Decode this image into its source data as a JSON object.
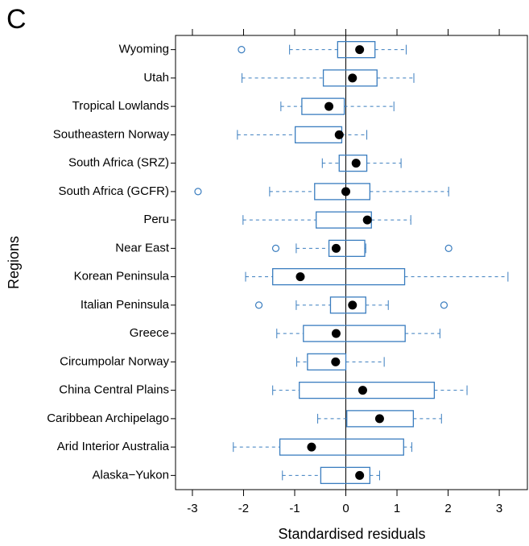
{
  "chart_data": {
    "type": "boxplot",
    "orientation": "horizontal",
    "panel_label": "C",
    "xlabel": "Standardised residuals",
    "ylabel": "Regions",
    "xlim": [
      -3.33,
      3.55
    ],
    "xticks": [
      -3,
      -2,
      -1,
      0,
      1,
      2,
      3
    ],
    "reference_line": 0,
    "box_color": "#3a7dbf",
    "mean_color": "#000000",
    "categories": [
      "Wyoming",
      "Utah",
      "Tropical Lowlands",
      "Southeastern Norway",
      "South Africa (SRZ)",
      "South Africa (GCFR)",
      "Peru",
      "Near East",
      "Korean Peninsula",
      "Italian Peninsula",
      "Greece",
      "Circumpolar Norway",
      "China Central Plains",
      "Caribbean Archipelago",
      "Arid Interior Australia",
      "Alaska−Yukon"
    ],
    "boxes": [
      {
        "low": -1.1,
        "q1": -0.16,
        "q3": 0.57,
        "high": 1.18,
        "mean": 0.27,
        "outliers": [
          -2.04
        ]
      },
      {
        "low": -2.03,
        "q1": -0.44,
        "q3": 0.61,
        "high": 1.33,
        "mean": 0.13,
        "outliers": []
      },
      {
        "low": -1.27,
        "q1": -0.86,
        "q3": -0.03,
        "high": 0.94,
        "mean": -0.33,
        "outliers": []
      },
      {
        "low": -2.12,
        "q1": -0.99,
        "q3": -0.08,
        "high": 0.41,
        "mean": -0.13,
        "outliers": []
      },
      {
        "low": -0.46,
        "q1": -0.13,
        "q3": 0.41,
        "high": 1.08,
        "mean": 0.2,
        "outliers": []
      },
      {
        "low": -1.49,
        "q1": -0.61,
        "q3": 0.47,
        "high": 2.01,
        "mean": 0.0,
        "outliers": [
          -2.89
        ]
      },
      {
        "low": -2.01,
        "q1": -0.58,
        "q3": 0.5,
        "high": 1.27,
        "mean": 0.42,
        "outliers": []
      },
      {
        "low": -0.97,
        "q1": -0.33,
        "q3": 0.37,
        "high": 0.39,
        "mean": -0.19,
        "outliers": [
          -1.37,
          2.01
        ]
      },
      {
        "low": -1.96,
        "q1": -1.43,
        "q3": 1.15,
        "high": 3.17,
        "mean": -0.89,
        "outliers": []
      },
      {
        "low": -0.97,
        "q1": -0.3,
        "q3": 0.39,
        "high": 0.83,
        "mean": 0.13,
        "outliers": [
          -1.7,
          1.92
        ]
      },
      {
        "low": -1.35,
        "q1": -0.83,
        "q3": 1.16,
        "high": 1.84,
        "mean": -0.19,
        "outliers": []
      },
      {
        "low": -0.96,
        "q1": -0.75,
        "q3": 0.0,
        "high": 0.75,
        "mean": -0.2,
        "outliers": []
      },
      {
        "low": -1.43,
        "q1": -0.91,
        "q3": 1.73,
        "high": 2.37,
        "mean": 0.33,
        "outliers": []
      },
      {
        "low": -0.55,
        "q1": 0.02,
        "q3": 1.32,
        "high": 1.87,
        "mean": 0.66,
        "outliers": []
      },
      {
        "low": -2.2,
        "q1": -1.29,
        "q3": 1.13,
        "high": 1.29,
        "mean": -0.67,
        "outliers": []
      },
      {
        "low": -1.24,
        "q1": -0.49,
        "q3": 0.47,
        "high": 0.66,
        "mean": 0.27,
        "outliers": []
      }
    ]
  }
}
